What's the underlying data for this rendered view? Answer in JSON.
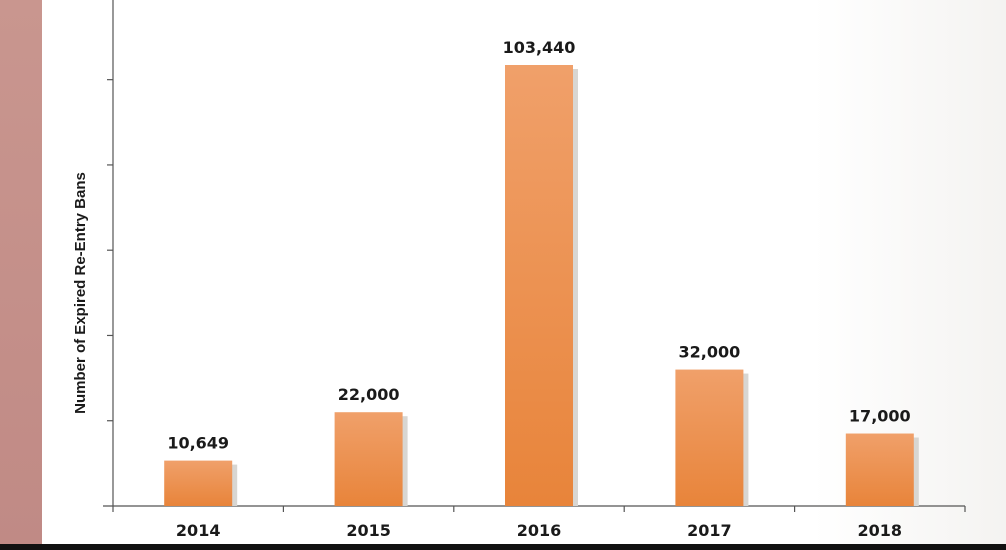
{
  "chart_data": {
    "type": "bar",
    "categories": [
      "2014",
      "2015",
      "2016",
      "2017",
      "2018"
    ],
    "values": [
      10649,
      22000,
      103440,
      32000,
      17000
    ],
    "value_labels": [
      "10,649",
      "22,000",
      "103,440",
      "32,000",
      "17,000"
    ],
    "title": "",
    "xlabel": "",
    "ylabel": "Number of Expired Re-Entry Bans",
    "ylim": [
      0,
      120000
    ],
    "y_tick_step": 20000,
    "y_tick_labels_shown": false,
    "grid": false,
    "legend": "none",
    "colors": {
      "bar_top": "#f0a06a",
      "bar_bottom": "#e8843a",
      "bar_shadow": "#d8d6d2",
      "axis": "#555555",
      "text": "#1a1a1a",
      "side_strip": "#c4908a"
    }
  }
}
